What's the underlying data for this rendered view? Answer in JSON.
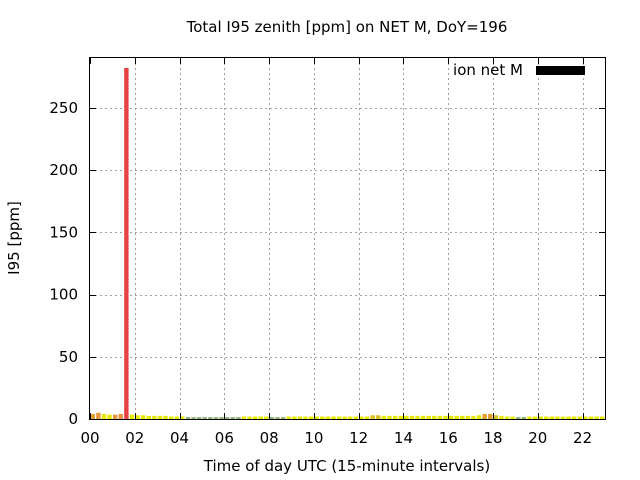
{
  "chart_data": {
    "type": "bar",
    "title": "Total I95 zenith [ppm] on NET M, DoY=196",
    "xlabel": "Time of day UTC (15-minute intervals)",
    "ylabel": "I95 [ppm]",
    "xlim": [
      0,
      23
    ],
    "ylim": [
      0,
      290
    ],
    "x_ticks": [
      0,
      2,
      4,
      6,
      8,
      10,
      12,
      14,
      16,
      18,
      20,
      22
    ],
    "x_tick_labels": [
      "00",
      "02",
      "04",
      "06",
      "08",
      "10",
      "12",
      "14",
      "16",
      "18",
      "20",
      "22"
    ],
    "y_ticks": [
      0,
      50,
      100,
      150,
      200,
      250
    ],
    "y_tick_labels": [
      "0",
      "50",
      "100",
      "150",
      "200",
      "250"
    ],
    "grid": true,
    "legend": {
      "label": "ion net M",
      "position": "top-right",
      "color": "#000000"
    },
    "bar_width_hours": 0.25,
    "series": [
      {
        "x": [
          0,
          0.25,
          0.5,
          0.75,
          1,
          1.25,
          1.5,
          1.75,
          2,
          2.25,
          2.5,
          2.75,
          3,
          3.25,
          3.5,
          3.75,
          4,
          4.25,
          4.5,
          4.75,
          5,
          5.25,
          5.5,
          5.75,
          6,
          6.25,
          6.5,
          6.75,
          7,
          7.25,
          7.5,
          7.75,
          8,
          8.25,
          8.5,
          8.75,
          9,
          9.25,
          9.5,
          9.75,
          10,
          10.25,
          10.5,
          10.75,
          11,
          11.25,
          11.5,
          11.75,
          12,
          12.25,
          12.5,
          12.75,
          13,
          13.25,
          13.5,
          13.75,
          14,
          14.25,
          14.5,
          14.75,
          15,
          15.25,
          15.5,
          15.75,
          16,
          16.25,
          16.5,
          16.75,
          17,
          17.25,
          17.5,
          17.75,
          18,
          18.25,
          18.5,
          18.75,
          19,
          19.25,
          19.5,
          19.75,
          20,
          20.25,
          20.5,
          20.75,
          21,
          21.25,
          21.5,
          21.75,
          22,
          22.25,
          22.5,
          22.75
        ],
        "values": [
          4,
          5,
          4,
          3.5,
          3.5,
          4,
          282,
          3.5,
          3,
          3,
          2.5,
          2.5,
          2.5,
          2.5,
          2,
          2,
          2,
          1.5,
          1.5,
          1.5,
          1.5,
          1.5,
          1.5,
          1.5,
          1.5,
          1.5,
          1.5,
          2,
          2,
          2,
          2,
          2,
          1.5,
          1.5,
          1.5,
          2,
          2,
          2,
          2,
          2,
          2,
          2,
          2,
          2,
          2,
          2,
          2,
          2,
          2,
          2,
          3,
          3,
          2.5,
          2.5,
          2.5,
          2.5,
          2.5,
          2.5,
          2.5,
          2.5,
          2.5,
          2.5,
          2.5,
          2.5,
          2.5,
          2.5,
          2.5,
          2.5,
          2.5,
          3,
          4,
          4,
          3,
          2.5,
          2,
          2,
          1.5,
          1.5,
          2,
          2,
          2,
          2,
          2,
          2,
          2,
          2,
          2,
          2,
          2,
          2,
          2,
          2
        ],
        "colors": [
          "#e0a030",
          "#e8963c",
          "#e8e800",
          "#e8e800",
          "#e8963c",
          "#e8963c",
          "#e84040",
          "#e8e800",
          "#e8e800",
          "#e8e800",
          "#e8e800",
          "#e8e800",
          "#e8e800",
          "#e8e800",
          "#e8e800",
          "#e8e800",
          "#e8e800",
          "#88b070",
          "#88b070",
          "#88b070",
          "#88b070",
          "#88b070",
          "#88b070",
          "#88b070",
          "#88b070",
          "#88b070",
          "#88b070",
          "#e8e800",
          "#e8e800",
          "#e8e800",
          "#e8e800",
          "#e8e800",
          "#88b070",
          "#88b070",
          "#88b070",
          "#e8e800",
          "#e8e800",
          "#e8e800",
          "#e8e800",
          "#e8e800",
          "#e8e800",
          "#e8e800",
          "#e8e800",
          "#e8e800",
          "#e8e800",
          "#e8e800",
          "#e8e800",
          "#e8e800",
          "#e8e800",
          "#e8e800",
          "#e0c020",
          "#e0c020",
          "#e8e800",
          "#e8e800",
          "#e8e800",
          "#e8e800",
          "#e8e800",
          "#e8e800",
          "#e8e800",
          "#e8e800",
          "#e8e800",
          "#e8e800",
          "#e8e800",
          "#e8e800",
          "#e8e800",
          "#e8e800",
          "#e8e800",
          "#e8e800",
          "#e8e800",
          "#e8e800",
          "#e0a030",
          "#e0a030",
          "#e0c020",
          "#e8e800",
          "#e8e800",
          "#e8e800",
          "#88b070",
          "#88b070",
          "#e8e800",
          "#e8e800",
          "#e8e800",
          "#e8e800",
          "#e8e800",
          "#e8e800",
          "#e8e800",
          "#e8e800",
          "#e8e800",
          "#e8e800",
          "#e8e800",
          "#e8e800",
          "#e8e800",
          "#e8e800"
        ]
      }
    ]
  }
}
